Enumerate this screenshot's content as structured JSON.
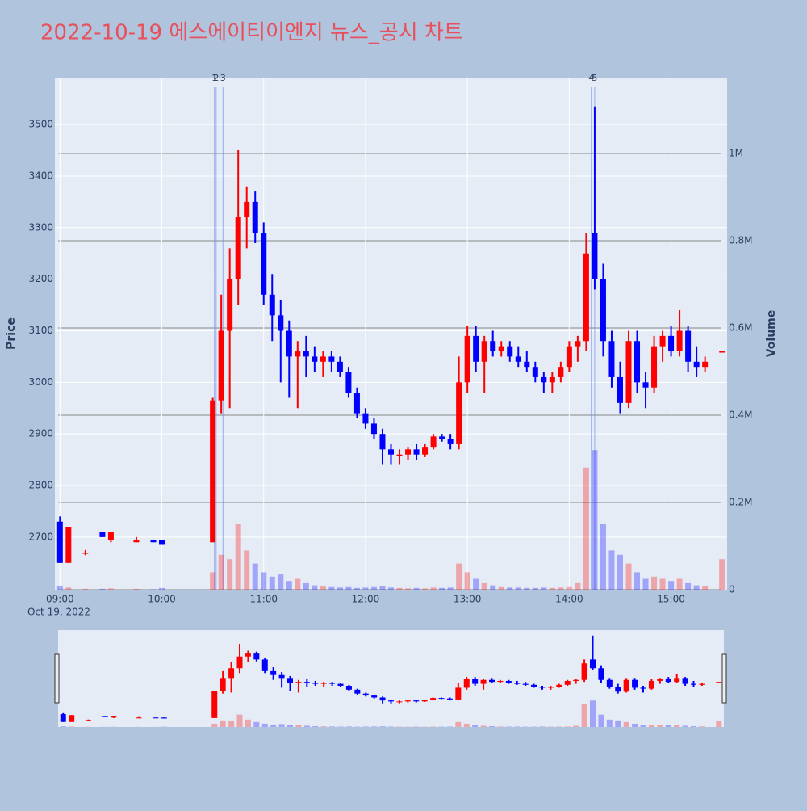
{
  "chart_data": {
    "type": "candlestick",
    "title": "2022-10-19 에스에이티이엔지 뉴스_공시 차트",
    "y_title": "Price",
    "y2_title": "Volume",
    "x_date_label": "Oct 19, 2022",
    "increasing_color": "#ff0000",
    "decreasing_color": "#0000ff",
    "x": [
      "09:00",
      "09:05",
      "09:15",
      "09:25",
      "09:30",
      "09:45",
      "09:55",
      "10:00",
      "10:30",
      "10:35",
      "10:40",
      "10:45",
      "10:50",
      "10:55",
      "11:00",
      "11:05",
      "11:10",
      "11:15",
      "11:20",
      "11:25",
      "11:30",
      "11:35",
      "11:40",
      "11:45",
      "11:50",
      "11:55",
      "12:00",
      "12:05",
      "12:10",
      "12:15",
      "12:20",
      "12:25",
      "12:30",
      "12:35",
      "12:40",
      "12:45",
      "12:50",
      "12:55",
      "13:00",
      "13:05",
      "13:10",
      "13:15",
      "13:20",
      "13:25",
      "13:30",
      "13:35",
      "13:40",
      "13:45",
      "13:50",
      "13:55",
      "14:00",
      "14:05",
      "14:10",
      "14:15",
      "14:20",
      "14:25",
      "14:30",
      "14:35",
      "14:40",
      "14:45",
      "14:50",
      "14:55",
      "15:00",
      "15:05",
      "15:10",
      "15:15",
      "15:20",
      "15:30"
    ],
    "open": [
      2730,
      2650,
      2670,
      2710,
      2695,
      2690,
      2695,
      2695,
      2690,
      2965,
      3100,
      3200,
      3320,
      3350,
      3290,
      3170,
      3130,
      3100,
      3050,
      3060,
      3050,
      3040,
      3050,
      3040,
      3020,
      2980,
      2940,
      2920,
      2900,
      2870,
      2860,
      2860,
      2870,
      2860,
      2875,
      2895,
      2890,
      2880,
      3000,
      3090,
      3040,
      3080,
      3060,
      3070,
      3050,
      3040,
      3030,
      3010,
      3000,
      3010,
      3030,
      3070,
      3080,
      3290,
      3200,
      3080,
      3010,
      2960,
      3080,
      3000,
      2990,
      3070,
      3090,
      3060,
      3100,
      3040,
      3030,
      3060
    ],
    "high": [
      2740,
      2720,
      2675,
      2710,
      2710,
      2700,
      2695,
      2695,
      2970,
      3170,
      3260,
      3450,
      3380,
      3370,
      3310,
      3210,
      3160,
      3120,
      3080,
      3090,
      3070,
      3060,
      3060,
      3050,
      3030,
      2990,
      2950,
      2930,
      2910,
      2880,
      2870,
      2875,
      2880,
      2880,
      2900,
      2900,
      2900,
      3050,
      3110,
      3110,
      3090,
      3100,
      3080,
      3080,
      3070,
      3060,
      3040,
      3020,
      3020,
      3040,
      3080,
      3090,
      3290,
      3535,
      3230,
      3100,
      3040,
      3100,
      3100,
      3020,
      3090,
      3100,
      3110,
      3140,
      3110,
      3070,
      3050,
      3060
    ],
    "low": [
      2650,
      2650,
      2665,
      2700,
      2690,
      2690,
      2690,
      2685,
      2690,
      2940,
      2950,
      3150,
      3260,
      3270,
      3150,
      3080,
      3000,
      2970,
      2950,
      3010,
      3020,
      3010,
      3020,
      3010,
      2970,
      2930,
      2910,
      2890,
      2840,
      2840,
      2840,
      2850,
      2850,
      2855,
      2870,
      2885,
      2870,
      2870,
      2980,
      3020,
      2980,
      3050,
      3050,
      3040,
      3030,
      3020,
      3000,
      2980,
      2980,
      3000,
      3020,
      3040,
      3060,
      3180,
      3050,
      2990,
      2940,
      2950,
      2980,
      2950,
      2980,
      3040,
      3050,
      3050,
      3020,
      3010,
      3020,
      3060
    ],
    "close": [
      2650,
      2720,
      2670,
      2700,
      2710,
      2695,
      2690,
      2685,
      2965,
      3100,
      3200,
      3320,
      3350,
      3290,
      3170,
      3130,
      3100,
      3050,
      3060,
      3050,
      3040,
      3050,
      3040,
      3020,
      2980,
      2940,
      2920,
      2900,
      2870,
      2860,
      2860,
      2870,
      2860,
      2875,
      2895,
      2890,
      2880,
      3000,
      3090,
      3040,
      3080,
      3060,
      3070,
      3050,
      3040,
      3030,
      3010,
      3000,
      3010,
      3030,
      3070,
      3080,
      3250,
      3200,
      3080,
      3010,
      2960,
      3080,
      3000,
      2990,
      3070,
      3090,
      3060,
      3100,
      3040,
      3030,
      3040,
      3060
    ],
    "volume": [
      8000,
      5000,
      2000,
      2000,
      3000,
      2000,
      1000,
      4000,
      40000,
      80000,
      70000,
      150000,
      90000,
      60000,
      40000,
      30000,
      35000,
      20000,
      25000,
      15000,
      10000,
      8000,
      6000,
      5000,
      6000,
      4000,
      5000,
      6000,
      8000,
      5000,
      4000,
      3000,
      4000,
      3000,
      5000,
      4000,
      5000,
      60000,
      40000,
      25000,
      15000,
      10000,
      6000,
      5000,
      5000,
      4000,
      4000,
      5000,
      4000,
      5000,
      6000,
      15000,
      280000,
      320000,
      150000,
      90000,
      80000,
      60000,
      40000,
      25000,
      30000,
      25000,
      20000,
      25000,
      15000,
      10000,
      8000,
      70000
    ],
    "news": [
      {
        "x": "10:31",
        "label": "1"
      },
      {
        "x": "10:32",
        "label": "2"
      },
      {
        "x": "10:36",
        "label": "3"
      },
      {
        "x": "14:13",
        "label": "4"
      },
      {
        "x": "14:15",
        "label": "5"
      }
    ],
    "xlim": [
      "08:57",
      "15:33"
    ],
    "xticks": [
      "09:00",
      "10:00",
      "11:00",
      "12:00",
      "13:00",
      "14:00",
      "15:00"
    ],
    "ylim": [
      2598,
      3591
    ],
    "yticks": [
      2700,
      2800,
      2900,
      3000,
      3100,
      3200,
      3300,
      3400,
      3500
    ],
    "y2lim": [
      0,
      1174000
    ],
    "y2ticks": [
      {
        "value": 0,
        "label": "0"
      },
      {
        "value": 200000,
        "label": "0.2M"
      },
      {
        "value": 400000,
        "label": "0.4M"
      },
      {
        "value": 600000,
        "label": "0.6M"
      },
      {
        "value": 800000,
        "label": "0.8M"
      },
      {
        "value": 1000000,
        "label": "1M"
      }
    ],
    "grid": true
  }
}
